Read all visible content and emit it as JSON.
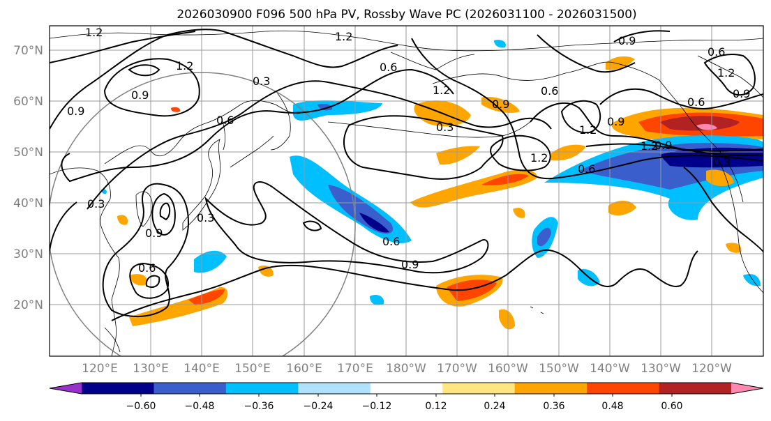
{
  "title": "2026030900 F096 500 hPa PV, Rossby Wave PC (2026031100 - 2026031500)",
  "map": {
    "lat_labels": [
      "70°N",
      "60°N",
      "50°N",
      "40°N",
      "30°N",
      "20°N"
    ],
    "lon_labels": [
      "120°E",
      "130°E",
      "140°E",
      "150°E",
      "160°E",
      "170°E",
      "180°W",
      "170°W",
      "160°W",
      "150°W",
      "140°W",
      "130°W",
      "120°W"
    ],
    "contour_labels": [
      "1.2",
      "1.2",
      "1.2",
      "0.9",
      "0.9",
      "0.9",
      "0.6",
      "0.3",
      "0.6",
      "1.2",
      "0.3",
      "1.2",
      "0.6",
      "0.9",
      "1.2",
      "1.2",
      "0.6",
      "0.9",
      "0.6",
      "0.9",
      "0.3",
      "0.9",
      "0.6",
      "0.3",
      "0.6",
      "0.9",
      "1.2",
      "0.9",
      "0.6",
      "0.3"
    ]
  },
  "colorbar": {
    "ticks": [
      "−0.60",
      "−0.48",
      "−0.36",
      "−0.24",
      "−0.12",
      "0.12",
      "0.24",
      "0.36",
      "0.48",
      "0.60"
    ],
    "colors": [
      "#9932cc",
      "#00008b",
      "#3a5fcd",
      "#00bfff",
      "#b0e2ff",
      "#ffffff",
      "#ffe680",
      "#ffa500",
      "#ff4500",
      "#b22222",
      "#ff88b0"
    ]
  }
}
